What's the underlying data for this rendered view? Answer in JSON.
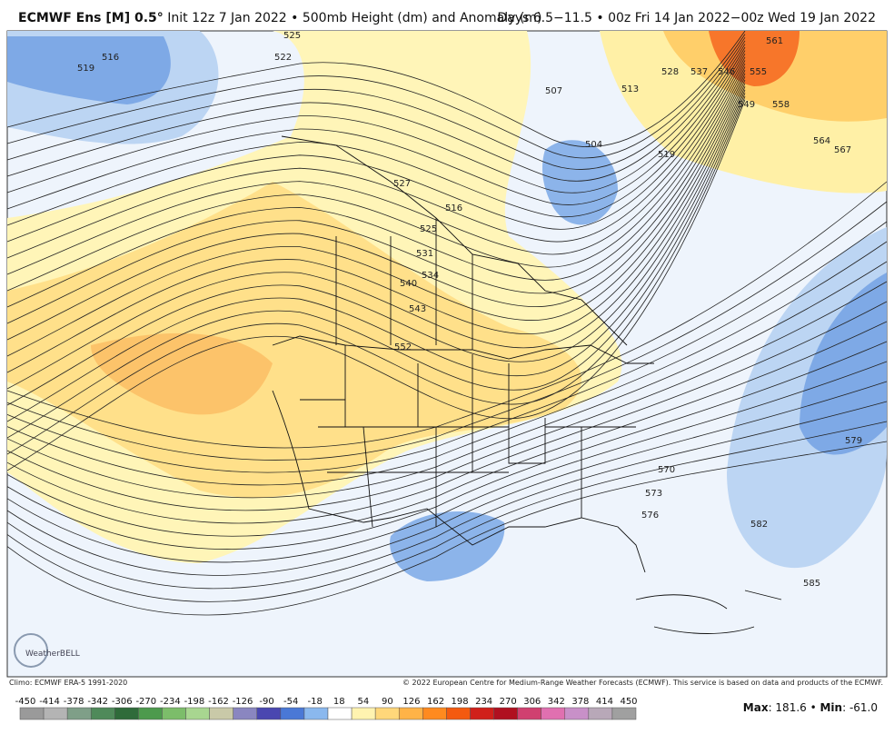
{
  "header": {
    "title_bold": "ECMWF Ens [M] 0.5°",
    "title_rest": " Init 12z 7 Jan 2022 • 500mb Height (dm) and Anomaly (m)",
    "valid": "Days 6.5−11.5 • 00z Fri 14 Jan 2022−00z Wed 19 Jan 2022"
  },
  "map": {
    "contour_labels": [
      "519",
      "516",
      "525",
      "522",
      "507",
      "513",
      "504",
      "528",
      "537",
      "546",
      "555",
      "561",
      "549",
      "558",
      "564",
      "567",
      "519",
      "527",
      "516",
      "525",
      "531",
      "534",
      "540",
      "543",
      "552",
      "570",
      "573",
      "576",
      "579",
      "582",
      "585"
    ],
    "logo": "WeatherBELL"
  },
  "footer": {
    "climo": "Climo: ECMWF ERA-5 1991-2020",
    "copyright": "© 2022 European Centre for Medium-Range Weather Forecasts (ECMWF). This service is based on data and products of the ECMWF.",
    "stats": [
      "Max",
      ": 181.6 • ",
      "Min",
      ": -61.0"
    ]
  },
  "colorbar": {
    "labels": [
      "-450",
      "-414",
      "-378",
      "-342",
      "-306",
      "-270",
      "-234",
      "-198",
      "-162",
      "-126",
      "-90",
      "-54",
      "-18",
      "18",
      "54",
      "90",
      "126",
      "162",
      "198",
      "234",
      "270",
      "306",
      "342",
      "378",
      "414",
      "450"
    ],
    "colors": [
      "#9a9a9a",
      "#b4b4b4",
      "#7f9f88",
      "#4f8a5a",
      "#2f6b3a",
      "#4d9a4d",
      "#7cbd6a",
      "#a8d690",
      "#c9c9a8",
      "#8a86c0",
      "#4a47b0",
      "#4a78d6",
      "#8ab8ee",
      "#ffffff",
      "#fff3b0",
      "#ffd77a",
      "#ffb347",
      "#ff8a1f",
      "#f45a0f",
      "#d0201a",
      "#b01020",
      "#d04070",
      "#e070b0",
      "#c890c8",
      "#b8a8b8",
      "#a0a0a0"
    ]
  }
}
